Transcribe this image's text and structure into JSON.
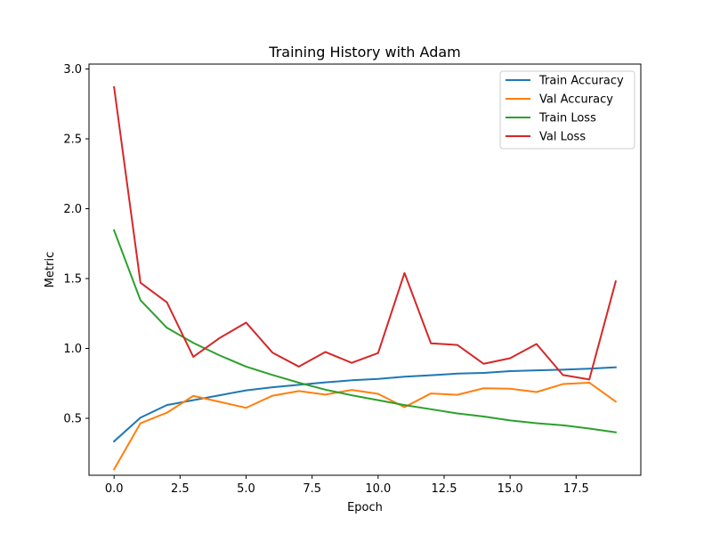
{
  "chart_data": {
    "type": "line",
    "title": "Training History with Adam",
    "xlabel": "Epoch",
    "ylabel": "Metric",
    "xlim": [
      -0.95,
      19.95
    ],
    "ylim": [
      0.0925,
      3.035
    ],
    "xticks": [
      0.0,
      2.5,
      5.0,
      7.5,
      10.0,
      12.5,
      15.0,
      17.5
    ],
    "xtick_labels": [
      "0.0",
      "2.5",
      "5.0",
      "7.5",
      "10.0",
      "12.5",
      "15.0",
      "17.5"
    ],
    "yticks": [
      0.5,
      1.0,
      1.5,
      2.0,
      2.5,
      3.0
    ],
    "ytick_labels": [
      "0.5",
      "1.0",
      "1.5",
      "2.0",
      "2.5",
      "3.0"
    ],
    "grid": false,
    "legend_position": "top-right",
    "x": [
      0,
      1,
      2,
      3,
      4,
      5,
      6,
      7,
      8,
      9,
      10,
      11,
      12,
      13,
      14,
      15,
      16,
      17,
      18,
      19
    ],
    "series": [
      {
        "name": "Train Accuracy",
        "color": "#1f77b4",
        "values": [
          0.335,
          0.505,
          0.595,
          0.63,
          0.665,
          0.7,
          0.722,
          0.74,
          0.757,
          0.772,
          0.782,
          0.798,
          0.808,
          0.82,
          0.825,
          0.838,
          0.843,
          0.848,
          0.855,
          0.865
        ]
      },
      {
        "name": "Val Accuracy",
        "color": "#ff7f0e",
        "values": [
          0.135,
          0.465,
          0.54,
          0.66,
          0.618,
          0.575,
          0.662,
          0.695,
          0.67,
          0.703,
          0.675,
          0.58,
          0.678,
          0.668,
          0.715,
          0.712,
          0.688,
          0.745,
          0.755,
          0.62
        ]
      },
      {
        "name": "Train Loss",
        "color": "#2ca02c",
        "values": [
          1.845,
          1.345,
          1.148,
          1.04,
          0.95,
          0.87,
          0.81,
          0.755,
          0.705,
          0.665,
          0.63,
          0.595,
          0.565,
          0.535,
          0.513,
          0.485,
          0.465,
          0.45,
          0.427,
          0.4
        ]
      },
      {
        "name": "Val Loss",
        "color": "#d62728",
        "values": [
          2.87,
          1.47,
          1.33,
          0.94,
          1.075,
          1.185,
          0.97,
          0.87,
          0.975,
          0.897,
          0.967,
          1.54,
          1.037,
          1.025,
          0.89,
          0.93,
          1.032,
          0.81,
          0.778,
          1.48
        ]
      }
    ]
  }
}
